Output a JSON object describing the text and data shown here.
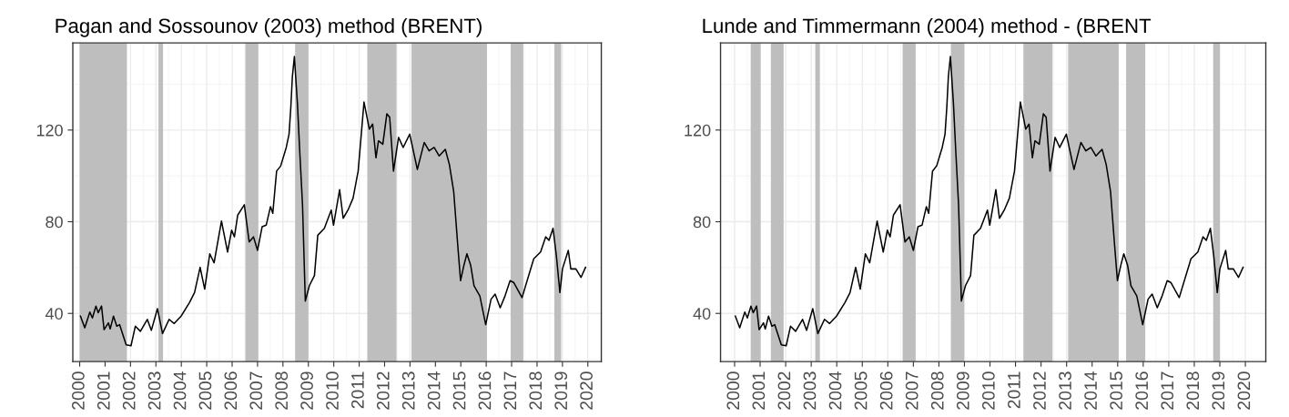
{
  "chart_data": [
    {
      "type": "line",
      "title": "Pagan and Sossounov (2003) method (BRENT)",
      "xlim": [
        1999.73,
        2020.53
      ],
      "xticks": [
        {
          "value": 2000,
          "label": "2000"
        },
        {
          "value": 2001,
          "label": "2001"
        },
        {
          "value": 2002,
          "label": "2002"
        },
        {
          "value": 2003,
          "label": "2003"
        },
        {
          "value": 2004,
          "label": "2004"
        },
        {
          "value": 2005,
          "label": "2005"
        },
        {
          "value": 2006,
          "label": "2006"
        },
        {
          "value": 2007,
          "label": "2007"
        },
        {
          "value": 2008,
          "label": "2008"
        },
        {
          "value": 2009,
          "label": "2009"
        },
        {
          "value": 2010,
          "label": "2010"
        },
        {
          "value": 2011,
          "label": "2011"
        },
        {
          "value": 2012,
          "label": "2012"
        },
        {
          "value": 2013,
          "label": "2013"
        },
        {
          "value": 2014,
          "label": "2014"
        },
        {
          "value": 2015,
          "label": "2015"
        },
        {
          "value": 2016,
          "label": "2016"
        },
        {
          "value": 2017,
          "label": "2017"
        },
        {
          "value": 2018,
          "label": "2018"
        },
        {
          "value": 2019,
          "label": "2019"
        },
        {
          "value": 2020,
          "label": "2020"
        }
      ],
      "ylim": [
        19,
        158
      ],
      "yticks": [
        40,
        80,
        120
      ],
      "grid": true,
      "x": [
        2000.03,
        2000.2,
        2000.4,
        2000.5,
        2000.64,
        2000.73,
        2000.86,
        2000.96,
        2001.13,
        2001.2,
        2001.33,
        2001.46,
        2001.57,
        2001.83,
        2002.02,
        2002.19,
        2002.39,
        2002.66,
        2002.82,
        2003.06,
        2003.26,
        2003.52,
        2003.72,
        2003.99,
        2004.32,
        2004.52,
        2004.74,
        2004.92,
        2005.12,
        2005.29,
        2005.58,
        2005.82,
        2005.98,
        2006.09,
        2006.22,
        2006.48,
        2006.67,
        2006.84,
        2007.0,
        2007.18,
        2007.34,
        2007.51,
        2007.6,
        2007.75,
        2007.91,
        2008.13,
        2008.24,
        2008.31,
        2008.37,
        2008.45,
        2008.57,
        2008.66,
        2008.77,
        2008.88,
        2009.04,
        2009.24,
        2009.37,
        2009.63,
        2009.9,
        2009.99,
        2010.23,
        2010.37,
        2010.56,
        2010.76,
        2010.96,
        2011.19,
        2011.4,
        2011.53,
        2011.66,
        2011.76,
        2011.93,
        2012.09,
        2012.2,
        2012.35,
        2012.55,
        2012.73,
        2012.99,
        2013.29,
        2013.56,
        2013.75,
        2013.95,
        2014.15,
        2014.39,
        2014.55,
        2014.72,
        2014.88,
        2014.99,
        2015.12,
        2015.24,
        2015.39,
        2015.52,
        2015.75,
        2015.98,
        2016.19,
        2016.35,
        2016.55,
        2016.74,
        2016.94,
        2017.08,
        2017.41,
        2017.67,
        2017.87,
        2018.14,
        2018.34,
        2018.47,
        2018.63,
        2018.76,
        2018.9,
        2019.0,
        2019.23,
        2019.33,
        2019.53,
        2019.73,
        2019.91
      ],
      "series": [
        {
          "color": "#000000",
          "values": [
            38.8,
            33.7,
            40.6,
            38,
            43.2,
            40.3,
            43.2,
            32.9,
            35.9,
            33.2,
            38.8,
            34.4,
            35.1,
            26.3,
            25.9,
            34.4,
            32.2,
            37.4,
            32.6,
            42.1,
            31.2,
            37.4,
            35.6,
            38.8,
            44.7,
            49.1,
            60.1,
            50.6,
            66.0,
            62.1,
            80.3,
            66.8,
            76.3,
            73.4,
            82.9,
            87.4,
            71.2,
            73.4,
            67.5,
            77.8,
            78.5,
            86.6,
            83.7,
            102.1,
            104.3,
            112.4,
            118.2,
            130,
            143.2,
            152.1,
            131.5,
            110.9,
            87.4,
            45.4,
            52.1,
            56.5,
            74.1,
            77.1,
            85.1,
            78.5,
            94.0,
            81.5,
            85.1,
            90.3,
            102.1,
            132.2,
            120.4,
            122.6,
            107.9,
            115.3,
            113.8,
            127.1,
            125.6,
            102.1,
            116.8,
            112.4,
            118.2,
            102.8,
            114.6,
            110.9,
            112.4,
            108.7,
            111.6,
            105,
            93.2,
            69.7,
            54.3,
            60.9,
            66.0,
            60.9,
            52.1,
            47.6,
            35.1,
            46.2,
            48.4,
            42.5,
            47.6,
            54.3,
            53.5,
            46.9,
            56.5,
            63.8,
            66.8,
            73.4,
            71.9,
            77.1,
            65.3,
            49.1,
            59.4,
            67.5,
            59.4,
            59.4,
            55.7,
            60.1
          ]
        }
      ],
      "bands": [
        {
          "axis": "x",
          "from": 2000.0,
          "to": 2001.86,
          "color": "#bebebe"
        },
        {
          "axis": "x",
          "from": 2003.1,
          "to": 2003.28,
          "color": "#bebebe"
        },
        {
          "axis": "x",
          "from": 2006.52,
          "to": 2007.03,
          "color": "#bebebe"
        },
        {
          "axis": "x",
          "from": 2008.48,
          "to": 2009.0,
          "color": "#bebebe"
        },
        {
          "axis": "x",
          "from": 2011.32,
          "to": 2012.47,
          "color": "#bebebe"
        },
        {
          "axis": "x",
          "from": 2013.06,
          "to": 2016.03,
          "color": "#bebebe"
        },
        {
          "axis": "x",
          "from": 2016.96,
          "to": 2017.46,
          "color": "#bebebe"
        },
        {
          "axis": "x",
          "from": 2018.68,
          "to": 2018.95,
          "color": "#bebebe"
        }
      ]
    },
    {
      "type": "line",
      "title": "Lunde and Timmermann (2004) method - (BRENT",
      "xlim": [
        1999.45,
        2020.8
      ],
      "xticks": [
        {
          "value": 2000,
          "label": "2000"
        },
        {
          "value": 2001,
          "label": "2001"
        },
        {
          "value": 2002,
          "label": "2002"
        },
        {
          "value": 2003,
          "label": "2003"
        },
        {
          "value": 2004,
          "label": "2004"
        },
        {
          "value": 2005,
          "label": "2005"
        },
        {
          "value": 2006,
          "label": "2006"
        },
        {
          "value": 2007,
          "label": "2007"
        },
        {
          "value": 2008,
          "label": "2008"
        },
        {
          "value": 2009,
          "label": "2009"
        },
        {
          "value": 2010,
          "label": "2010"
        },
        {
          "value": 2011,
          "label": "2011"
        },
        {
          "value": 2012,
          "label": "2012"
        },
        {
          "value": 2013,
          "label": "2013"
        },
        {
          "value": 2014,
          "label": "2014"
        },
        {
          "value": 2015,
          "label": "2015"
        },
        {
          "value": 2016,
          "label": "2016"
        },
        {
          "value": 2017,
          "label": "2017"
        },
        {
          "value": 2018,
          "label": "2018"
        },
        {
          "value": 2019,
          "label": "2019"
        },
        {
          "value": 2020,
          "label": "2020"
        }
      ],
      "ylim": [
        19,
        158
      ],
      "yticks": [
        40,
        80,
        120
      ],
      "grid": true,
      "x": [
        2000.03,
        2000.2,
        2000.4,
        2000.5,
        2000.64,
        2000.73,
        2000.86,
        2000.96,
        2001.13,
        2001.2,
        2001.33,
        2001.46,
        2001.57,
        2001.83,
        2002.02,
        2002.19,
        2002.39,
        2002.66,
        2002.82,
        2003.06,
        2003.26,
        2003.52,
        2003.72,
        2003.99,
        2004.32,
        2004.52,
        2004.74,
        2004.92,
        2005.12,
        2005.29,
        2005.58,
        2005.82,
        2005.98,
        2006.09,
        2006.22,
        2006.48,
        2006.67,
        2006.84,
        2007.0,
        2007.18,
        2007.34,
        2007.51,
        2007.6,
        2007.75,
        2007.91,
        2008.13,
        2008.24,
        2008.31,
        2008.37,
        2008.45,
        2008.57,
        2008.66,
        2008.77,
        2008.88,
        2009.04,
        2009.24,
        2009.37,
        2009.63,
        2009.9,
        2009.99,
        2010.23,
        2010.37,
        2010.56,
        2010.76,
        2010.96,
        2011.19,
        2011.4,
        2011.53,
        2011.66,
        2011.76,
        2011.93,
        2012.09,
        2012.2,
        2012.35,
        2012.55,
        2012.73,
        2012.99,
        2013.29,
        2013.56,
        2013.75,
        2013.95,
        2014.15,
        2014.39,
        2014.55,
        2014.72,
        2014.88,
        2014.99,
        2015.12,
        2015.24,
        2015.39,
        2015.52,
        2015.75,
        2015.98,
        2016.19,
        2016.35,
        2016.55,
        2016.74,
        2016.94,
        2017.08,
        2017.41,
        2017.67,
        2017.87,
        2018.14,
        2018.34,
        2018.47,
        2018.63,
        2018.76,
        2018.9,
        2019.0,
        2019.23,
        2019.33,
        2019.53,
        2019.73,
        2019.91
      ],
      "series": [
        {
          "color": "#000000",
          "values": [
            38.8,
            33.7,
            40.6,
            38,
            43.2,
            40.3,
            43.2,
            32.9,
            35.9,
            33.2,
            38.8,
            34.4,
            35.1,
            26.3,
            25.9,
            34.4,
            32.2,
            37.4,
            32.6,
            42.1,
            31.2,
            37.4,
            35.6,
            38.8,
            44.7,
            49.1,
            60.1,
            50.6,
            66.0,
            62.1,
            80.3,
            66.8,
            76.3,
            73.4,
            82.9,
            87.4,
            71.2,
            73.4,
            67.5,
            77.8,
            78.5,
            86.6,
            83.7,
            102.1,
            104.3,
            112.4,
            118.2,
            130,
            143.2,
            152.1,
            131.5,
            110.9,
            87.4,
            45.4,
            52.1,
            56.5,
            74.1,
            77.1,
            85.1,
            78.5,
            94.0,
            81.5,
            85.1,
            90.3,
            102.1,
            132.2,
            120.4,
            122.6,
            107.9,
            115.3,
            113.8,
            127.1,
            125.6,
            102.1,
            116.8,
            112.4,
            118.2,
            102.8,
            114.6,
            110.9,
            112.4,
            108.7,
            111.6,
            105,
            93.2,
            69.7,
            54.3,
            60.9,
            66.0,
            60.9,
            52.1,
            47.6,
            35.1,
            46.2,
            48.4,
            42.5,
            47.6,
            54.3,
            53.5,
            46.9,
            56.5,
            63.8,
            66.8,
            73.4,
            71.9,
            77.1,
            65.3,
            49.1,
            59.4,
            67.5,
            59.4,
            59.4,
            55.7,
            60.1
          ]
        }
      ],
      "bands": [
        {
          "axis": "x",
          "from": 2000.63,
          "to": 2001.02,
          "color": "#bebebe"
        },
        {
          "axis": "x",
          "from": 2001.42,
          "to": 2001.92,
          "color": "#bebebe"
        },
        {
          "axis": "x",
          "from": 2003.16,
          "to": 2003.34,
          "color": "#bebebe"
        },
        {
          "axis": "x",
          "from": 2006.58,
          "to": 2007.09,
          "color": "#bebebe"
        },
        {
          "axis": "x",
          "from": 2008.47,
          "to": 2008.99,
          "color": "#bebebe"
        },
        {
          "axis": "x",
          "from": 2011.31,
          "to": 2012.45,
          "color": "#bebebe"
        },
        {
          "axis": "x",
          "from": 2013.06,
          "to": 2015.04,
          "color": "#bebebe"
        },
        {
          "axis": "x",
          "from": 2015.33,
          "to": 2016.08,
          "color": "#bebebe"
        },
        {
          "axis": "x",
          "from": 2018.74,
          "to": 2019.0,
          "color": "#bebebe"
        }
      ]
    }
  ]
}
